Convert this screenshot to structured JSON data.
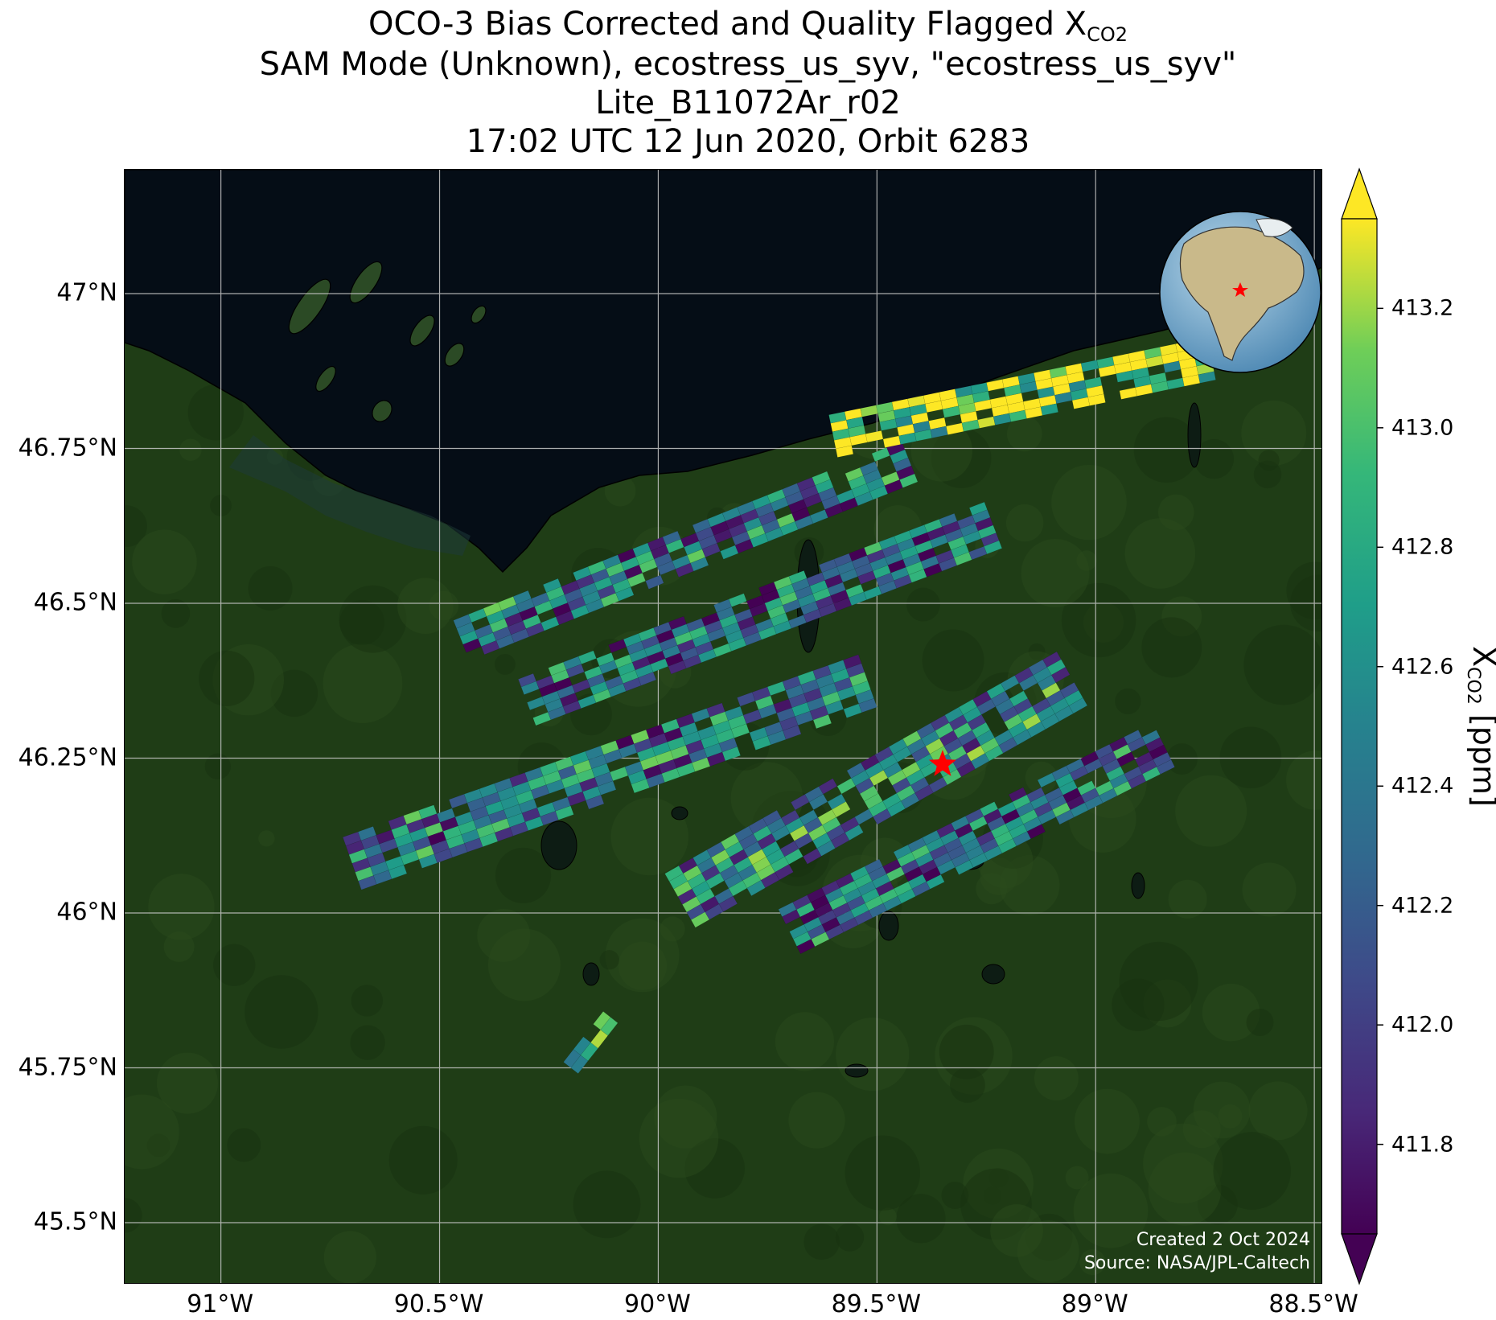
{
  "title": {
    "line1_prefix": "OCO-3 Bias Corrected and Quality Flagged X",
    "line1_sub": "CO2",
    "line2": "SAM Mode (Unknown), ecostress_us_syv, \"ecostress_us_syv\"",
    "line3": "Lite_B11072Ar_r02",
    "line4": "17:02 UTC 12 Jun 2020, Orbit 6283"
  },
  "credit": {
    "created": "Created 2 Oct 2024",
    "source": "Source: NASA/JPL-Caltech"
  },
  "map": {
    "lon_range": [
      -91.22,
      -88.48
    ],
    "lat_range": [
      45.4,
      47.2
    ],
    "lon_ticks": [
      "91°W",
      "90.5°W",
      "90°W",
      "89.5°W",
      "89°W",
      "88.5°W"
    ],
    "lon_tick_values": [
      -91.0,
      -90.5,
      -90.0,
      -89.5,
      -89.0,
      -88.5
    ],
    "lat_ticks": [
      "47°N",
      "46.75°N",
      "46.5°N",
      "46.25°N",
      "46°N",
      "45.75°N",
      "45.5°N"
    ],
    "lat_tick_values": [
      47.0,
      46.75,
      46.5,
      46.25,
      46.0,
      45.75,
      45.5
    ],
    "grid": true,
    "target_marker": {
      "lon": -89.35,
      "lat": 46.24,
      "color": "#ff0000"
    },
    "water_color": "#050d16",
    "land_color": "#1f3d16"
  },
  "colorbar": {
    "label_prefix": "X",
    "label_sub": "CO2",
    "label_suffix": " [ppm]",
    "range": [
      411.65,
      413.35
    ],
    "ticks": [
      "411.8",
      "412.0",
      "412.2",
      "412.4",
      "412.6",
      "412.8",
      "413.0",
      "413.2"
    ],
    "tick_values": [
      411.8,
      412.0,
      412.2,
      412.4,
      412.6,
      412.8,
      413.0,
      413.2
    ],
    "extend": "both",
    "colormap": "viridis"
  },
  "chart_data": {
    "type": "heatmap",
    "description_fields": "XCO2 soundings in SAM mode swaths (lon/lat in degrees, value in ppm)",
    "swaths": [
      {
        "lon_start": -90.45,
        "lat_start": 46.44,
        "lon_end": -89.42,
        "lat_end": 46.73,
        "width_deg": 0.07,
        "mean_ppm": 412.4
      },
      {
        "lon_start": -90.3,
        "lat_start": 46.34,
        "lon_end": -89.22,
        "lat_end": 46.63,
        "width_deg": 0.08,
        "mean_ppm": 412.3
      },
      {
        "lon_start": -89.6,
        "lat_start": 46.77,
        "lon_end": -88.7,
        "lat_end": 46.9,
        "width_deg": 0.07,
        "mean_ppm": 413.2
      },
      {
        "lon_start": -90.7,
        "lat_start": 46.08,
        "lon_end": -89.5,
        "lat_end": 46.38,
        "width_deg": 0.09,
        "mean_ppm": 412.4
      },
      {
        "lon_start": -89.95,
        "lat_start": 46.02,
        "lon_end": -89.05,
        "lat_end": 46.38,
        "width_deg": 0.1,
        "mean_ppm": 412.5
      },
      {
        "lon_start": -89.7,
        "lat_start": 45.97,
        "lon_end": -88.82,
        "lat_end": 46.28,
        "width_deg": 0.08,
        "mean_ppm": 412.3
      },
      {
        "lon_start": -90.2,
        "lat_start": 45.75,
        "lon_end": -90.1,
        "lat_end": 45.84,
        "width_deg": 0.03,
        "mean_ppm": 413.1
      }
    ]
  }
}
